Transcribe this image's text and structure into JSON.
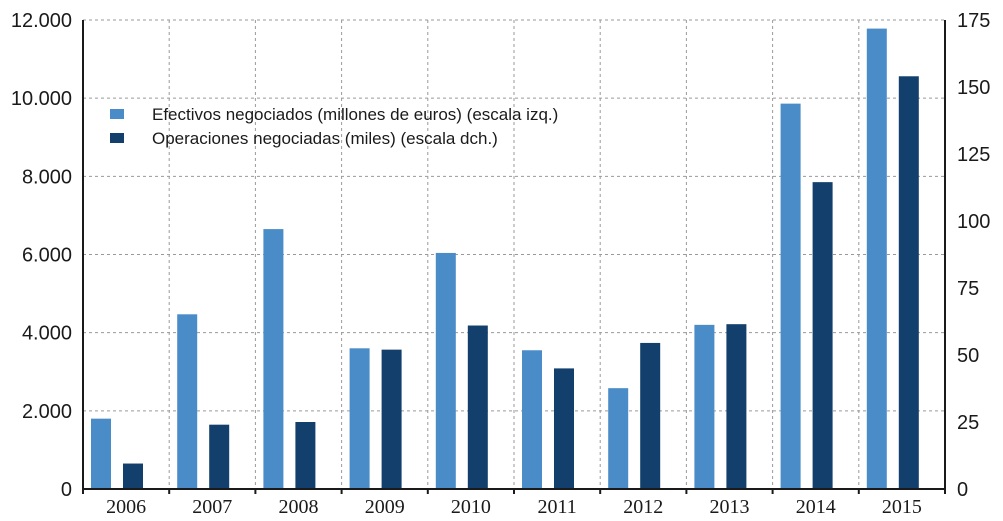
{
  "chart_data": {
    "type": "bar",
    "categories": [
      "2006",
      "2007",
      "2008",
      "2009",
      "2010",
      "2011",
      "2012",
      "2013",
      "2014",
      "2015"
    ],
    "series": [
      {
        "name": "Efectivos negociados (millones de euros) (escala izq.)",
        "axis": "left",
        "color": "#4a8cc7",
        "values": [
          1800,
          4470,
          6650,
          3600,
          6040,
          3550,
          2580,
          4200,
          9860,
          11780
        ]
      },
      {
        "name": "Operaciones negociadas (miles) (escala dch.)",
        "axis": "right",
        "color": "#123f6b",
        "values": [
          9.5,
          24,
          25,
          52,
          61,
          45,
          54.5,
          61.5,
          114.5,
          154
        ]
      }
    ],
    "y_left": {
      "ylim": [
        0,
        12000
      ],
      "ticks": [
        0,
        2000,
        4000,
        6000,
        8000,
        10000,
        12000
      ],
      "tick_labels": [
        "0",
        "2.000",
        "4.000",
        "6.000",
        "8.000",
        "10.000",
        "12.000"
      ]
    },
    "y_right": {
      "ylim": [
        0,
        175
      ],
      "ticks": [
        0,
        25,
        50,
        75,
        100,
        125,
        150,
        175
      ],
      "tick_labels": [
        "0",
        "25",
        "50",
        "75",
        "100",
        "125",
        "150",
        "175"
      ]
    },
    "grid": true,
    "legend_position": "top-left"
  }
}
